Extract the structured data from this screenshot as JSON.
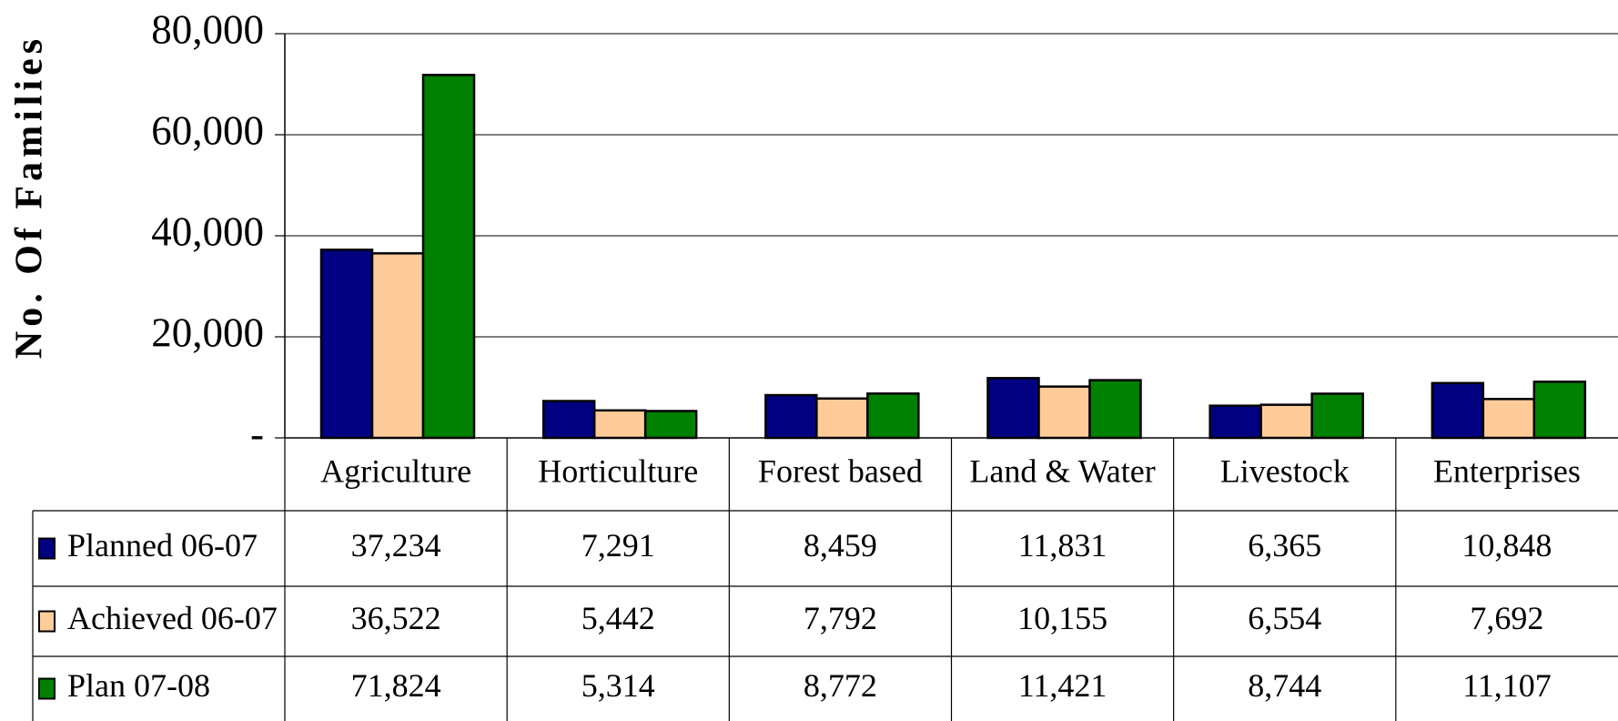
{
  "chart_data": {
    "type": "bar",
    "y_label": "No. Of Families",
    "categories": [
      "Agriculture",
      "Horticulture",
      "Forest based",
      "Land & Water",
      "Livestock",
      "Enterprises"
    ],
    "series": [
      {
        "name": "Planned 06-07",
        "color": "#000080",
        "values": [
          37234,
          7291,
          8459,
          11831,
          6365,
          10848
        ],
        "value_labels": [
          "37,234",
          "7,291",
          "8,459",
          "11,831",
          "6,365",
          "10,848"
        ]
      },
      {
        "name": "Achieved 06-07",
        "color": "#ffcc99",
        "values": [
          36522,
          5442,
          7792,
          10155,
          6554,
          7692
        ],
        "value_labels": [
          "36,522",
          "5,442",
          "7,792",
          "10,155",
          "6,554",
          "7,692"
        ]
      },
      {
        "name": "Plan 07-08",
        "color": "#008000",
        "values": [
          71824,
          5314,
          8772,
          11421,
          8744,
          11107
        ],
        "value_labels": [
          "71,824",
          "5,314",
          "8,772",
          "11,421",
          "8,744",
          "11,107"
        ]
      }
    ],
    "ylim": [
      0,
      80000
    ],
    "yticks": [
      {
        "value": 0,
        "label": "-"
      },
      {
        "value": 20000,
        "label": "20,000"
      },
      {
        "value": 40000,
        "label": "40,000"
      },
      {
        "value": 60000,
        "label": "60,000"
      },
      {
        "value": 80000,
        "label": "80,000"
      }
    ],
    "grid": true
  }
}
